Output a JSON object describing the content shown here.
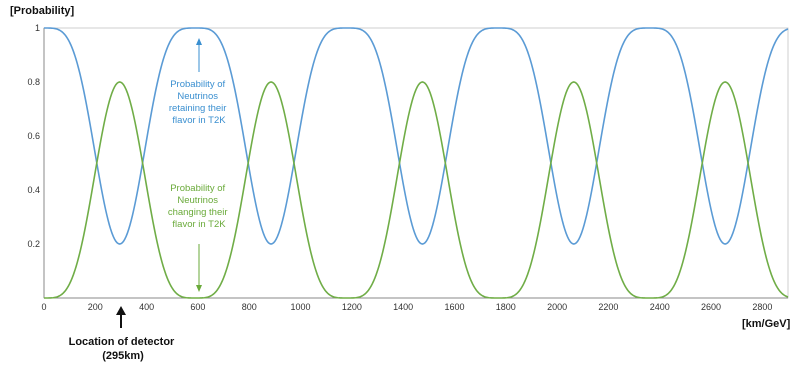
{
  "chart_data": {
    "type": "line",
    "xlabel": "[km/GeV]",
    "ylabel": "[Probability]",
    "xlim": [
      0,
      2900
    ],
    "ylim": [
      0,
      1
    ],
    "x_ticks": [
      "0",
      "200",
      "400",
      "600",
      "800",
      "1000",
      "1200",
      "1400",
      "1600",
      "1800",
      "2000",
      "2200",
      "2400",
      "2600",
      "2800"
    ],
    "y_ticks": [
      "0.2",
      "0.4",
      "0.6",
      "0.8",
      "1"
    ],
    "grid": false,
    "oscillation_period": 590,
    "x_step": 5,
    "series": [
      {
        "color": "#5b9bd5",
        "min": 0.2,
        "max": 1.0
      },
      {
        "color": "#70ad47",
        "min": 0.0,
        "max": 0.8
      }
    ],
    "annotations": {
      "retaining": {
        "lines": [
          "Probability of",
          "Neutrinos",
          "retaining their",
          "flavor in T2K"
        ],
        "color": "#3a8fd0"
      },
      "changing": {
        "lines": [
          "Probability of",
          "Neutrinos",
          "changing their",
          "flavor in T2K"
        ],
        "color": "#6aaa3a"
      },
      "detector": {
        "lines": [
          "Location  of detector",
          "(295km)"
        ],
        "x": 295
      }
    }
  }
}
